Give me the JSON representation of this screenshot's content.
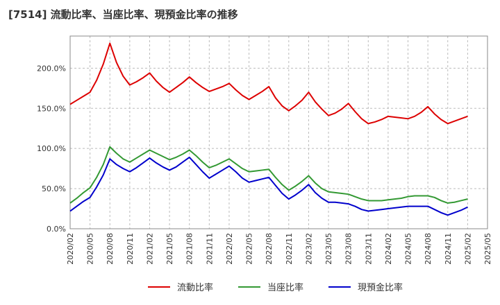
{
  "chart_data": {
    "type": "line",
    "title": "[7514]  流動比率、当座比率、現預金比率の推移",
    "xlabel": "",
    "ylabel": "",
    "ylim": [
      0,
      240
    ],
    "yticks": [
      0,
      50,
      100,
      150,
      200
    ],
    "ytick_labels": [
      "0.0%",
      "50.0%",
      "100.0%",
      "150.0%",
      "200.0%"
    ],
    "xticks": [
      "2020/02",
      "2020/05",
      "2020/08",
      "2020/11",
      "2021/02",
      "2021/05",
      "2021/08",
      "2021/11",
      "2022/02",
      "2022/05",
      "2022/08",
      "2022/11",
      "2023/02",
      "2023/05",
      "2023/08",
      "2023/11",
      "2024/02",
      "2024/05",
      "2024/08",
      "2024/11",
      "2025/02",
      "2025/05"
    ],
    "x": [
      "2020/02",
      "2020/03",
      "2020/04",
      "2020/05",
      "2020/06",
      "2020/07",
      "2020/08",
      "2020/09",
      "2020/10",
      "2020/11",
      "2020/12",
      "2021/01",
      "2021/02",
      "2021/03",
      "2021/04",
      "2021/05",
      "2021/06",
      "2021/07",
      "2021/08",
      "2021/09",
      "2021/10",
      "2021/11",
      "2021/12",
      "2022/01",
      "2022/02",
      "2022/03",
      "2022/04",
      "2022/05",
      "2022/06",
      "2022/07",
      "2022/08",
      "2022/09",
      "2022/10",
      "2022/11",
      "2022/12",
      "2023/01",
      "2023/02",
      "2023/03",
      "2023/04",
      "2023/05",
      "2023/06",
      "2023/07",
      "2023/08",
      "2023/09",
      "2023/10",
      "2023/11",
      "2023/12",
      "2024/01",
      "2024/02",
      "2024/03",
      "2024/04",
      "2024/05",
      "2024/06",
      "2024/07",
      "2024/08",
      "2024/09",
      "2024/10",
      "2024/11",
      "2024/12",
      "2025/01",
      "2025/02"
    ],
    "series": [
      {
        "name": "流動比率",
        "color": "#dd0000",
        "values": [
          155,
          160,
          165,
          170,
          185,
          205,
          231,
          207,
          190,
          179,
          183,
          188,
          194,
          184,
          176,
          170,
          176,
          182,
          189,
          182,
          176,
          171,
          174,
          177,
          181,
          173,
          166,
          161,
          166,
          171,
          177,
          163,
          153,
          147,
          153,
          160,
          170,
          158,
          149,
          141,
          144,
          149,
          156,
          146,
          137,
          131,
          133,
          136,
          140,
          139,
          138,
          137,
          140,
          145,
          152,
          143,
          136,
          131,
          134,
          137,
          140
        ]
      },
      {
        "name": "当座比率",
        "color": "#339933",
        "values": [
          32,
          38,
          45,
          51,
          64,
          80,
          102,
          94,
          87,
          83,
          88,
          93,
          98,
          94,
          90,
          86,
          89,
          93,
          98,
          91,
          83,
          76,
          79,
          83,
          87,
          81,
          75,
          71,
          72,
          73,
          74,
          64,
          55,
          48,
          53,
          59,
          66,
          57,
          50,
          46,
          45,
          44,
          43,
          40,
          37,
          35,
          35,
          35,
          36,
          37,
          38,
          40,
          41,
          41,
          41,
          39,
          35,
          32,
          33,
          35,
          37
        ]
      },
      {
        "name": "現預金比率",
        "color": "#0000cc",
        "values": [
          22,
          28,
          34,
          39,
          52,
          67,
          87,
          80,
          75,
          71,
          76,
          82,
          88,
          82,
          77,
          73,
          77,
          83,
          89,
          80,
          71,
          63,
          68,
          73,
          78,
          71,
          63,
          58,
          60,
          62,
          64,
          54,
          44,
          37,
          42,
          48,
          55,
          45,
          38,
          33,
          33,
          32,
          31,
          28,
          24,
          22,
          23,
          24,
          25,
          26,
          27,
          28,
          28,
          28,
          28,
          24,
          20,
          17,
          20,
          23,
          27
        ]
      }
    ],
    "legend_position": "bottom-center",
    "grid": "dashed horizontal and vertical"
  }
}
